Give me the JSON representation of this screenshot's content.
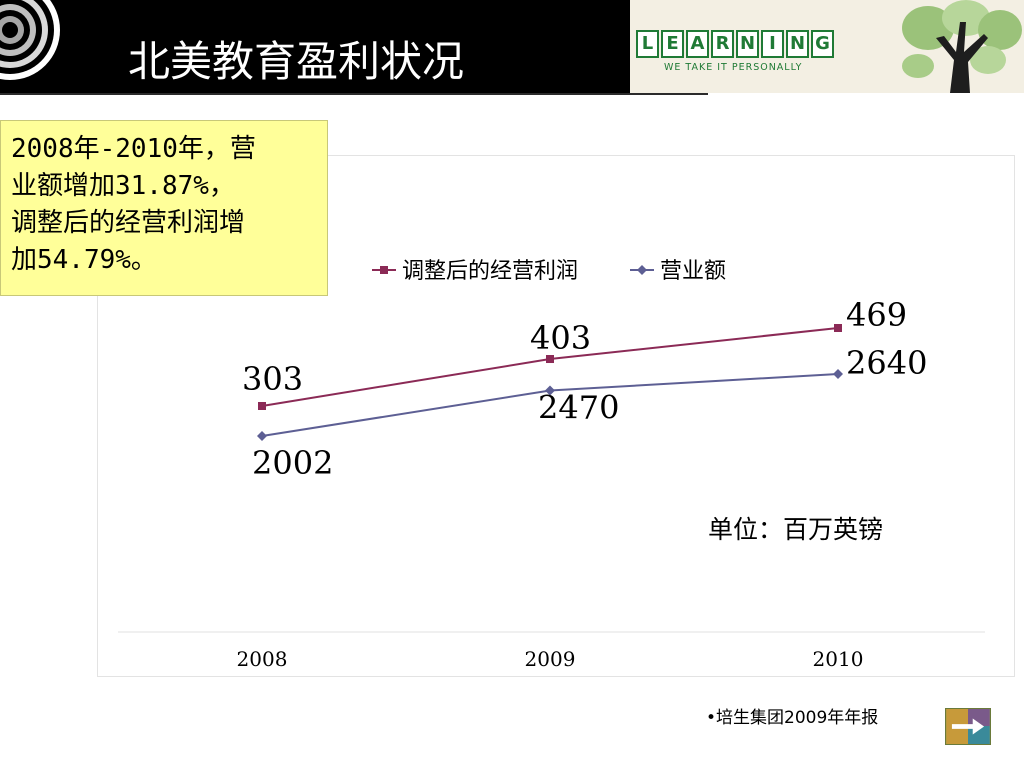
{
  "header": {
    "title": "北美教育盈利状况",
    "logo_text": "LEARNING",
    "logo_letters": [
      "L",
      "E",
      "A",
      "R",
      "N",
      "I",
      "N",
      "G"
    ],
    "logo_tagline": "WE TAKE IT PERSONALLY"
  },
  "note": {
    "line1": "2008年-2010年，营",
    "line2": "业额增加31.87%，",
    "line3": "调整后的经营利润增",
    "line4": "加54.79%。"
  },
  "chart_data": {
    "type": "line",
    "categories": [
      "2008",
      "2009",
      "2010"
    ],
    "series": [
      {
        "name": "调整后的经营利润",
        "values": [
          303,
          403,
          469
        ],
        "color": "#8b2a56",
        "marker": "square"
      },
      {
        "name": "营业额",
        "values": [
          2002,
          2470,
          2640
        ],
        "color": "#5d5f94",
        "marker": "diamond"
      }
    ],
    "unit_note": "单位：百万英镑",
    "grid": false,
    "legend": "top-center"
  },
  "footer": {
    "source": "•培生集团2009年年报"
  },
  "colors": {
    "header_bg": "#000000",
    "note_bg": "#ffff99",
    "logo_green": "#1f7a35"
  }
}
